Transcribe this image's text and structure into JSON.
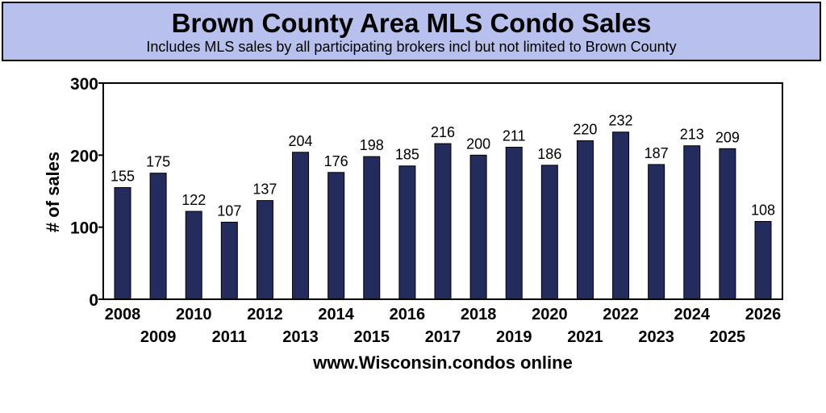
{
  "header": {
    "title": "Brown County Area MLS Condo Sales",
    "subtitle": "Includes MLS sales by all participating brokers incl but not limited to Brown County"
  },
  "footer": {
    "source": "www.Wisconsin.condos online"
  },
  "colors": {
    "bar": "#232c5c",
    "header_bg": "#b8c0ee"
  },
  "chart_data": {
    "type": "bar",
    "title": "Brown County Area MLS Condo Sales",
    "subtitle": "Includes MLS sales by all participating brokers incl but not limited to Brown County",
    "ylabel": "# of sales",
    "xlabel": "",
    "ylim": [
      0,
      300
    ],
    "yticks": [
      0,
      100,
      200,
      300
    ],
    "grid": false,
    "categories": [
      "2008",
      "2009",
      "2010",
      "2011",
      "2012",
      "2013",
      "2014",
      "2015",
      "2016",
      "2017",
      "2018",
      "2019",
      "2020",
      "2021",
      "2022",
      "2023",
      "2024",
      "2025",
      "2026"
    ],
    "values": [
      155,
      175,
      122,
      107,
      137,
      204,
      176,
      198,
      185,
      216,
      200,
      211,
      186,
      220,
      232,
      187,
      213,
      209,
      108
    ]
  }
}
